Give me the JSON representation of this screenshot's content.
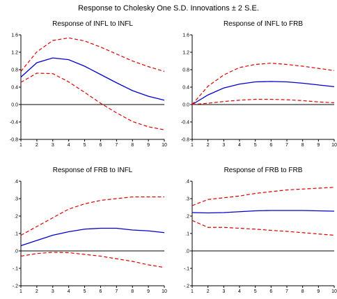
{
  "title": "Response to Cholesky One S.D. Innovations ± 2 S.E.",
  "colors": {
    "response": "#0000cc",
    "bands": "#dd0000",
    "axis": "#000000",
    "zero": "#000000"
  },
  "chart_data": [
    {
      "type": "line",
      "title": "Response of INFL to INFL",
      "x": [
        1,
        2,
        3,
        4,
        5,
        6,
        7,
        8,
        9,
        10
      ],
      "xticks": [
        "1",
        "2",
        "3",
        "4",
        "5",
        "6",
        "7",
        "8",
        "9",
        "10"
      ],
      "ylim": [
        -0.8,
        1.6
      ],
      "yticks": [
        -0.8,
        -0.4,
        0.0,
        0.4,
        0.8,
        1.2,
        1.6
      ],
      "ytick_labels": [
        "-0.8",
        "-0.4",
        "0.0",
        "0.4",
        "0.8",
        "1.2",
        "1.6"
      ],
      "series": [
        {
          "role": "response",
          "values": [
            0.63,
            0.96,
            1.07,
            1.03,
            0.88,
            0.69,
            0.5,
            0.32,
            0.19,
            0.1
          ]
        },
        {
          "role": "upper",
          "values": [
            0.76,
            1.21,
            1.47,
            1.53,
            1.46,
            1.32,
            1.16,
            1.0,
            0.87,
            0.76
          ]
        },
        {
          "role": "lower",
          "values": [
            0.51,
            0.72,
            0.71,
            0.52,
            0.28,
            0.03,
            -0.19,
            -0.39,
            -0.51,
            -0.58
          ]
        }
      ]
    },
    {
      "type": "line",
      "title": "Response of INFL to FRB",
      "x": [
        1,
        2,
        3,
        4,
        5,
        6,
        7,
        8,
        9,
        10
      ],
      "xticks": [
        "1",
        "2",
        "3",
        "4",
        "5",
        "6",
        "7",
        "8",
        "9",
        "10"
      ],
      "ylim": [
        -0.8,
        1.6
      ],
      "yticks": [
        -0.8,
        -0.4,
        0.0,
        0.4,
        0.8,
        1.2,
        1.6
      ],
      "ytick_labels": [
        "-0.8",
        "-0.4",
        "0.0",
        "0.4",
        "0.8",
        "1.2",
        "1.6"
      ],
      "series": [
        {
          "role": "response",
          "values": [
            0.0,
            0.22,
            0.38,
            0.47,
            0.52,
            0.53,
            0.52,
            0.49,
            0.45,
            0.41
          ]
        },
        {
          "role": "upper",
          "values": [
            0.0,
            0.42,
            0.68,
            0.85,
            0.92,
            0.95,
            0.92,
            0.88,
            0.83,
            0.78
          ]
        },
        {
          "role": "lower",
          "values": [
            0.0,
            0.03,
            0.07,
            0.1,
            0.12,
            0.12,
            0.11,
            0.09,
            0.06,
            0.04
          ]
        }
      ]
    },
    {
      "type": "line",
      "title": "Response of FRB to INFL",
      "x": [
        1,
        2,
        3,
        4,
        5,
        6,
        7,
        8,
        9,
        10
      ],
      "xticks": [
        "1",
        "2",
        "3",
        "4",
        "5",
        "6",
        "7",
        "8",
        "9",
        "10"
      ],
      "ylim": [
        -0.2,
        0.4
      ],
      "yticks": [
        -0.2,
        -0.1,
        0.0,
        0.1,
        0.2,
        0.3,
        0.4
      ],
      "ytick_labels": [
        "-.2",
        "-.1",
        ".0",
        ".1",
        ".2",
        ".3",
        ".4"
      ],
      "series": [
        {
          "role": "response",
          "values": [
            0.03,
            0.06,
            0.09,
            0.11,
            0.125,
            0.13,
            0.13,
            0.12,
            0.115,
            0.105
          ]
        },
        {
          "role": "upper",
          "values": [
            0.09,
            0.14,
            0.19,
            0.24,
            0.27,
            0.29,
            0.3,
            0.31,
            0.31,
            0.31
          ]
        },
        {
          "role": "lower",
          "values": [
            -0.03,
            -0.015,
            -0.008,
            -0.01,
            -0.02,
            -0.03,
            -0.045,
            -0.06,
            -0.08,
            -0.095
          ]
        }
      ]
    },
    {
      "type": "line",
      "title": "Response of FRB to FRB",
      "x": [
        1,
        2,
        3,
        4,
        5,
        6,
        7,
        8,
        9,
        10
      ],
      "xticks": [
        "1",
        "2",
        "3",
        "4",
        "5",
        "6",
        "7",
        "8",
        "9",
        "10"
      ],
      "ylim": [
        -0.2,
        0.4
      ],
      "yticks": [
        -0.2,
        -0.1,
        0.0,
        0.1,
        0.2,
        0.3,
        0.4
      ],
      "ytick_labels": [
        "-.2",
        "-.1",
        ".0",
        ".1",
        ".2",
        ".3",
        ".4"
      ],
      "series": [
        {
          "role": "response",
          "values": [
            0.22,
            0.218,
            0.22,
            0.225,
            0.23,
            0.232,
            0.232,
            0.232,
            0.23,
            0.228
          ]
        },
        {
          "role": "upper",
          "values": [
            0.26,
            0.295,
            0.305,
            0.315,
            0.33,
            0.34,
            0.35,
            0.355,
            0.36,
            0.365
          ]
        },
        {
          "role": "lower",
          "values": [
            0.175,
            0.135,
            0.135,
            0.13,
            0.125,
            0.118,
            0.112,
            0.105,
            0.097,
            0.09
          ]
        }
      ]
    }
  ]
}
